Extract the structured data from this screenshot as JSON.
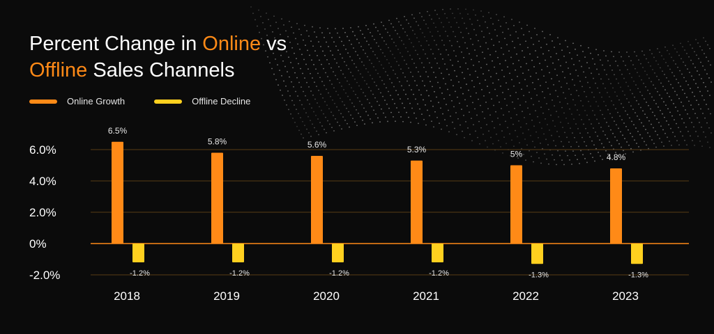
{
  "title": {
    "part1": "Percent Change in ",
    "online": "Online",
    "part2": " vs",
    "offline": "Offline",
    "part3": " Sales Channels"
  },
  "colors": {
    "online": "#ff8a17",
    "offline": "#ffd01f",
    "background": "#0b0b0b",
    "grid": "#5a3c16"
  },
  "chart_data": {
    "type": "bar",
    "categories": [
      "2018",
      "2019",
      "2020",
      "2021",
      "2022",
      "2023"
    ],
    "series": [
      {
        "name": "Online Growth",
        "values": [
          6.5,
          5.8,
          5.6,
          5.3,
          5.0,
          4.8
        ],
        "labels": [
          "6.5%",
          "5.8%",
          "5.6%",
          "5.3%",
          "5%",
          "4.8%"
        ]
      },
      {
        "name": "Offline Decline",
        "values": [
          -1.2,
          -1.2,
          -1.2,
          -1.2,
          -1.3,
          -1.3
        ],
        "labels": [
          "-1.2%",
          "-1.2%",
          "-1.2%",
          "-1.2%",
          "-1.3%",
          "-1.3%"
        ]
      }
    ],
    "yticks": [
      6,
      4,
      2,
      0,
      -2
    ],
    "ytick_labels": [
      "6.0%",
      "4.0%",
      "2.0%",
      "0%",
      "-2.0%"
    ],
    "ylim": [
      -2,
      6.5
    ],
    "grid": true,
    "legend_position": "top-left"
  }
}
